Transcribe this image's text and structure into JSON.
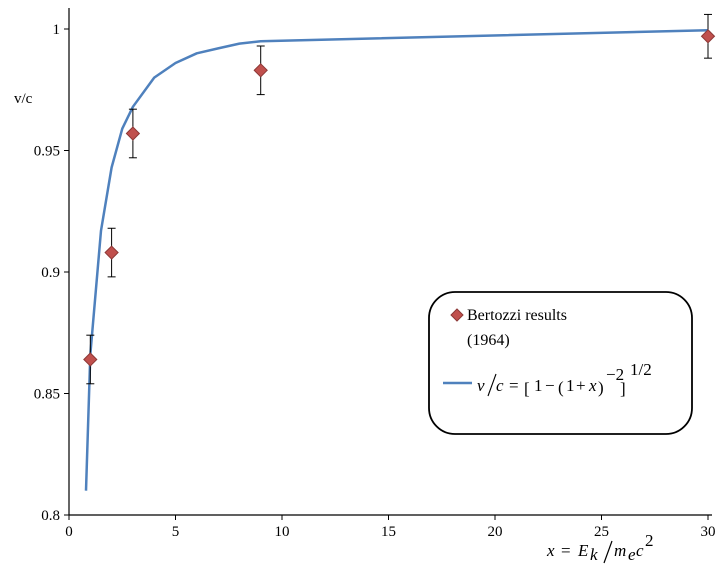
{
  "chart_data": {
    "type": "scatter",
    "ylabel": "v/c",
    "xlabel": "x = E_k / m_e c^2",
    "xlim": [
      0,
      30
    ],
    "ylim": [
      0.8,
      1.0
    ],
    "x_ticks": [
      "0",
      "5",
      "10",
      "15",
      "20",
      "25",
      "30"
    ],
    "y_ticks": [
      "0.8",
      "0.85",
      "0.9",
      "0.95",
      "1"
    ],
    "grid": false,
    "legend_position": "right",
    "series": [
      {
        "name": "Bertozzi results (1964)",
        "kind": "scatter",
        "marker": "diamond",
        "color": "#c0504d",
        "points": [
          {
            "x": 1,
            "y": 0.864,
            "err": 0.01
          },
          {
            "x": 2,
            "y": 0.908,
            "err": 0.01
          },
          {
            "x": 3,
            "y": 0.957,
            "err": 0.01
          },
          {
            "x": 9,
            "y": 0.983,
            "err": 0.01
          },
          {
            "x": 30,
            "y": 0.997,
            "err": 0.009
          }
        ]
      },
      {
        "name": "v/c = [1−(1+x)^−2]^1/2",
        "kind": "line",
        "color": "#4f81bd",
        "points": [
          {
            "x": 0.8,
            "y": 0.81
          },
          {
            "x": 1,
            "y": 0.866
          },
          {
            "x": 1.5,
            "y": 0.917
          },
          {
            "x": 2,
            "y": 0.943
          },
          {
            "x": 2.5,
            "y": 0.959
          },
          {
            "x": 3,
            "y": 0.968
          },
          {
            "x": 4,
            "y": 0.98
          },
          {
            "x": 5,
            "y": 0.986
          },
          {
            "x": 6,
            "y": 0.99
          },
          {
            "x": 7,
            "y": 0.992
          },
          {
            "x": 8,
            "y": 0.994
          },
          {
            "x": 9,
            "y": 0.995
          },
          {
            "x": 30,
            "y": 0.9995
          }
        ]
      }
    ]
  },
  "legend": {
    "scatter_label_line1": "Bertozzi results",
    "scatter_label_line2": "(1964)",
    "line_label": "v/c = [1−(1+x)^−2]^1/2"
  }
}
